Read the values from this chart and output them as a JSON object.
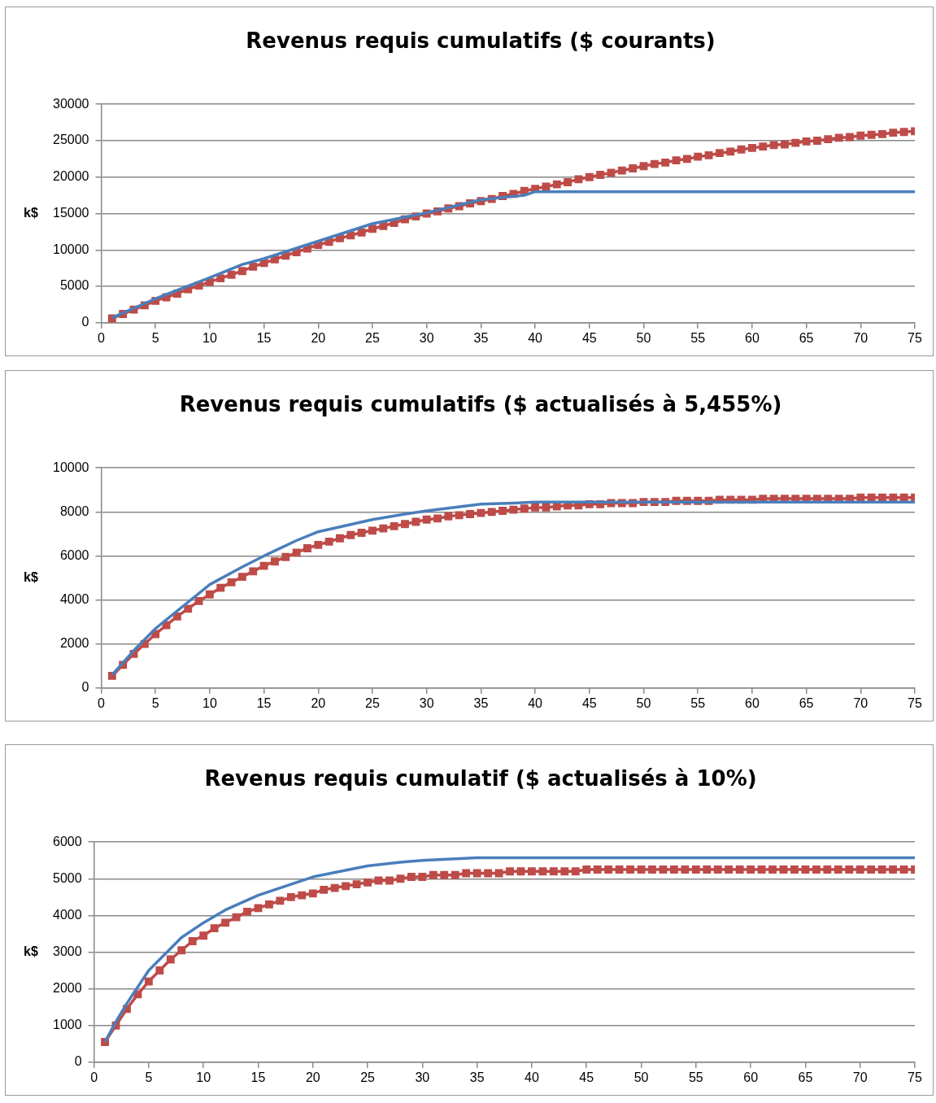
{
  "chart_data": [
    {
      "type": "line",
      "title": "Revenus requis cumulatifs ($ courants)",
      "ylabel": "k$",
      "xlim": [
        0,
        75
      ],
      "xticks": [
        0,
        5,
        10,
        15,
        20,
        25,
        30,
        35,
        40,
        45,
        50,
        55,
        60,
        65,
        70,
        75
      ],
      "ylim": [
        0,
        30000
      ],
      "yticks": [
        0,
        5000,
        10000,
        15000,
        20000,
        25000,
        30000
      ],
      "grid": "y",
      "legend": false,
      "series": [
        {
          "color": "#4a7ebb",
          "marker": "none",
          "x": [
            1,
            5,
            10,
            13,
            15,
            20,
            25,
            30,
            35,
            39,
            40,
            75
          ],
          "values": [
            700,
            3300,
            6200,
            8000,
            8800,
            11200,
            13600,
            15100,
            16900,
            17500,
            18000,
            18000
          ]
        },
        {
          "color": "#be4b48",
          "marker": "square",
          "x": [
            1,
            2,
            3,
            4,
            5,
            6,
            7,
            8,
            9,
            10,
            11,
            12,
            13,
            14,
            15,
            16,
            17,
            18,
            19,
            20,
            21,
            22,
            23,
            24,
            25,
            26,
            27,
            28,
            29,
            30,
            31,
            32,
            33,
            34,
            35,
            36,
            37,
            38,
            39,
            40,
            41,
            42,
            43,
            44,
            45,
            46,
            47,
            48,
            49,
            50,
            51,
            52,
            53,
            54,
            55,
            56,
            57,
            58,
            59,
            60,
            61,
            62,
            63,
            64,
            65,
            66,
            67,
            68,
            69,
            70,
            71,
            72,
            73,
            74,
            75
          ],
          "values": [
            600,
            1200,
            1800,
            2400,
            3000,
            3500,
            4000,
            4600,
            5100,
            5600,
            6100,
            6600,
            7100,
            7700,
            8200,
            8700,
            9200,
            9700,
            10200,
            10700,
            11100,
            11600,
            12000,
            12400,
            12900,
            13300,
            13700,
            14200,
            14600,
            15000,
            15300,
            15700,
            16000,
            16400,
            16700,
            17000,
            17400,
            17700,
            18100,
            18400,
            18700,
            19000,
            19300,
            19700,
            20000,
            20300,
            20600,
            20900,
            21200,
            21500,
            21800,
            22000,
            22300,
            22500,
            22800,
            23000,
            23300,
            23500,
            23800,
            24000,
            24200,
            24400,
            24500,
            24700,
            24900,
            25000,
            25200,
            25400,
            25500,
            25700,
            25800,
            25900,
            26100,
            26200,
            26300
          ]
        }
      ]
    },
    {
      "type": "line",
      "title": "Revenus requis cumulatifs ($ actualisés à 5,455%)",
      "ylabel": "k$",
      "xlim": [
        0,
        75
      ],
      "xticks": [
        0,
        5,
        10,
        15,
        20,
        25,
        30,
        35,
        40,
        45,
        50,
        55,
        60,
        65,
        70,
        75
      ],
      "ylim": [
        0,
        10000
      ],
      "yticks": [
        0,
        2000,
        4000,
        6000,
        8000,
        10000
      ],
      "grid": "y",
      "legend": false,
      "series": [
        {
          "color": "#4a7ebb",
          "marker": "none",
          "x": [
            1,
            3,
            5,
            8,
            10,
            13,
            15,
            18,
            20,
            25,
            28,
            30,
            35,
            38,
            40,
            75
          ],
          "values": [
            600,
            1700,
            2700,
            3900,
            4700,
            5500,
            6000,
            6700,
            7100,
            7650,
            7900,
            8050,
            8350,
            8400,
            8450,
            8450
          ]
        },
        {
          "color": "#be4b48",
          "marker": "square",
          "x": [
            1,
            2,
            3,
            4,
            5,
            6,
            7,
            8,
            9,
            10,
            11,
            12,
            13,
            14,
            15,
            16,
            17,
            18,
            19,
            20,
            21,
            22,
            23,
            24,
            25,
            26,
            27,
            28,
            29,
            30,
            31,
            32,
            33,
            34,
            35,
            36,
            37,
            38,
            39,
            40,
            41,
            42,
            43,
            44,
            45,
            46,
            47,
            48,
            49,
            50,
            51,
            52,
            53,
            54,
            55,
            56,
            57,
            58,
            59,
            60,
            61,
            62,
            63,
            64,
            65,
            66,
            67,
            68,
            69,
            70,
            71,
            72,
            73,
            74,
            75
          ],
          "values": [
            550,
            1050,
            1550,
            2000,
            2450,
            2850,
            3250,
            3600,
            3950,
            4250,
            4550,
            4800,
            5050,
            5300,
            5550,
            5750,
            5950,
            6150,
            6350,
            6500,
            6650,
            6800,
            6950,
            7050,
            7150,
            7250,
            7350,
            7450,
            7550,
            7650,
            7700,
            7800,
            7850,
            7900,
            7950,
            8000,
            8050,
            8100,
            8150,
            8200,
            8200,
            8250,
            8300,
            8300,
            8350,
            8350,
            8400,
            8400,
            8400,
            8450,
            8450,
            8450,
            8500,
            8500,
            8500,
            8500,
            8550,
            8550,
            8550,
            8550,
            8600,
            8600,
            8600,
            8600,
            8600,
            8600,
            8600,
            8600,
            8600,
            8650,
            8650,
            8650,
            8650,
            8650,
            8650
          ]
        }
      ]
    },
    {
      "type": "line",
      "title": "Revenus requis cumulatif ($ actualisés à 10%)",
      "ylabel": "k$",
      "xlim": [
        0,
        75
      ],
      "xticks": [
        0,
        5,
        10,
        15,
        20,
        25,
        30,
        35,
        40,
        45,
        50,
        55,
        60,
        65,
        70,
        75
      ],
      "ylim": [
        0,
        6000
      ],
      "yticks": [
        0,
        1000,
        2000,
        3000,
        4000,
        5000,
        6000
      ],
      "grid": "y",
      "legend": false,
      "series": [
        {
          "color": "#4a7ebb",
          "marker": "none",
          "x": [
            1,
            2,
            3,
            5,
            8,
            10,
            12,
            15,
            18,
            20,
            25,
            28,
            30,
            35,
            75
          ],
          "values": [
            550,
            1100,
            1600,
            2500,
            3400,
            3800,
            4150,
            4550,
            4850,
            5050,
            5350,
            5450,
            5500,
            5570,
            5570
          ]
        },
        {
          "color": "#be4b48",
          "marker": "square",
          "x": [
            1,
            2,
            3,
            4,
            5,
            6,
            7,
            8,
            9,
            10,
            11,
            12,
            13,
            14,
            15,
            16,
            17,
            18,
            19,
            20,
            21,
            22,
            23,
            24,
            25,
            26,
            27,
            28,
            29,
            30,
            31,
            32,
            33,
            34,
            35,
            36,
            37,
            38,
            39,
            40,
            41,
            42,
            43,
            44,
            45,
            46,
            47,
            48,
            49,
            50,
            51,
            52,
            53,
            54,
            55,
            56,
            57,
            58,
            59,
            60,
            61,
            62,
            63,
            64,
            65,
            66,
            67,
            68,
            69,
            70,
            71,
            72,
            73,
            74,
            75
          ],
          "values": [
            550,
            1000,
            1450,
            1850,
            2200,
            2500,
            2800,
            3050,
            3300,
            3450,
            3650,
            3800,
            3950,
            4100,
            4200,
            4300,
            4400,
            4500,
            4550,
            4600,
            4700,
            4750,
            4800,
            4850,
            4900,
            4950,
            4950,
            5000,
            5050,
            5050,
            5100,
            5100,
            5100,
            5150,
            5150,
            5150,
            5150,
            5200,
            5200,
            5200,
            5200,
            5200,
            5200,
            5200,
            5250,
            5250,
            5250,
            5250,
            5250,
            5250,
            5250,
            5250,
            5250,
            5250,
            5250,
            5250,
            5250,
            5250,
            5250,
            5250,
            5250,
            5250,
            5250,
            5250,
            5250,
            5250,
            5250,
            5250,
            5250,
            5250,
            5250,
            5250,
            5250,
            5250,
            5250
          ]
        }
      ]
    }
  ]
}
